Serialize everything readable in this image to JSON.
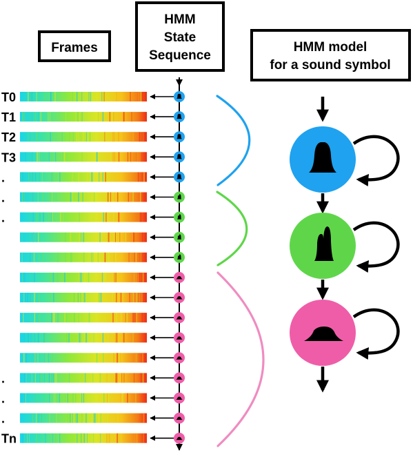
{
  "header": {
    "frames_title": "Frames",
    "state_sequence_title": [
      "HMM",
      "State",
      "Sequence"
    ],
    "model_title": [
      "HMM model",
      "for a sound symbol"
    ]
  },
  "frame_labels": [
    "T0",
    "T1",
    "T2",
    "T3",
    ".",
    ".",
    ".",
    "",
    "",
    "",
    "",
    "",
    "",
    "",
    ".",
    ".",
    ".",
    "Tn"
  ],
  "state_sequence": [
    0,
    0,
    0,
    0,
    0,
    1,
    1,
    1,
    1,
    2,
    2,
    2,
    2,
    2,
    2,
    2,
    2,
    2
  ],
  "states": [
    {
      "color": "#1fa2ef",
      "shape": "bell-icon"
    },
    {
      "color": "#5fd64a",
      "shape": "double-peak-icon"
    },
    {
      "color": "#ef5da8",
      "shape": "flat-hump-icon"
    }
  ]
}
